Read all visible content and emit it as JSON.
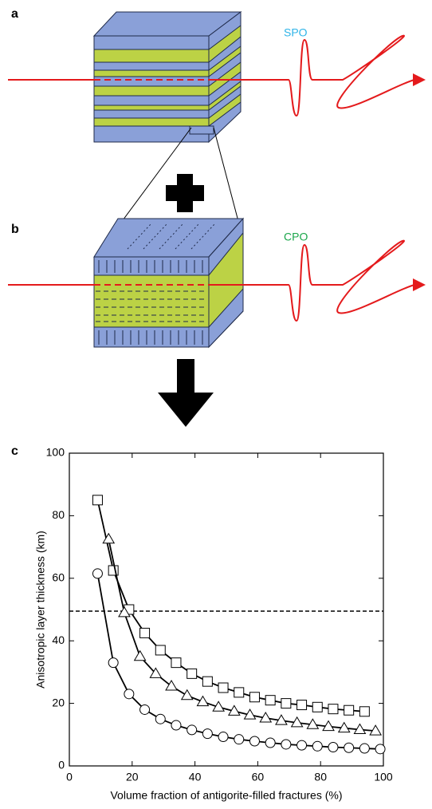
{
  "diagram": {
    "panel_a": "a",
    "text_a": "SPO",
    "panel_b": "b",
    "text_b": "CPO"
  },
  "chart_data": {
    "type": "scatter",
    "panel_label": "c",
    "xlabel": "Volume fraction of antigorite-filled fractures (%)",
    "ylabel": "Anisotropic layer thickness (km)",
    "xlim": [
      0,
      100
    ],
    "ylim": [
      0,
      100
    ],
    "xticks": [
      0,
      20,
      40,
      60,
      80,
      100
    ],
    "yticks": [
      0,
      20,
      40,
      60,
      80,
      100
    ],
    "hline": 49.5,
    "series": [
      {
        "marker": "square",
        "color": "#000000",
        "x": [
          9,
          14,
          19,
          24,
          29,
          34,
          39,
          44,
          49,
          54,
          59,
          64,
          69,
          74,
          79,
          84,
          89,
          94
        ],
        "values": [
          85,
          62.5,
          50,
          42.5,
          37,
          33,
          29.5,
          27,
          25,
          23.5,
          22,
          21,
          20,
          19.5,
          18.8,
          18.2,
          17.8,
          17.4
        ]
      },
      {
        "marker": "triangle",
        "color": "#000000",
        "x": [
          12.5,
          17.5,
          22.5,
          27.5,
          32.5,
          37.5,
          42.5,
          47.5,
          52.5,
          57.5,
          62.5,
          67.5,
          72.5,
          77.5,
          82.5,
          87.5,
          92.5,
          97.5
        ],
        "values": [
          72.5,
          49,
          35,
          29.5,
          25.5,
          22.5,
          20.5,
          18.8,
          17.5,
          16.3,
          15.3,
          14.5,
          13.8,
          13.2,
          12.6,
          12.1,
          11.6,
          11.2
        ]
      },
      {
        "marker": "circle",
        "color": "#000000",
        "x": [
          9,
          14,
          19,
          24,
          29,
          34,
          39,
          44,
          49,
          54,
          59,
          64,
          69,
          74,
          79,
          84,
          89,
          94,
          99
        ],
        "values": [
          61.5,
          33,
          23,
          18,
          15,
          13,
          11.5,
          10.3,
          9.3,
          8.5,
          7.9,
          7.4,
          6.9,
          6.6,
          6.3,
          6.0,
          5.8,
          5.6,
          5.4
        ]
      }
    ]
  }
}
